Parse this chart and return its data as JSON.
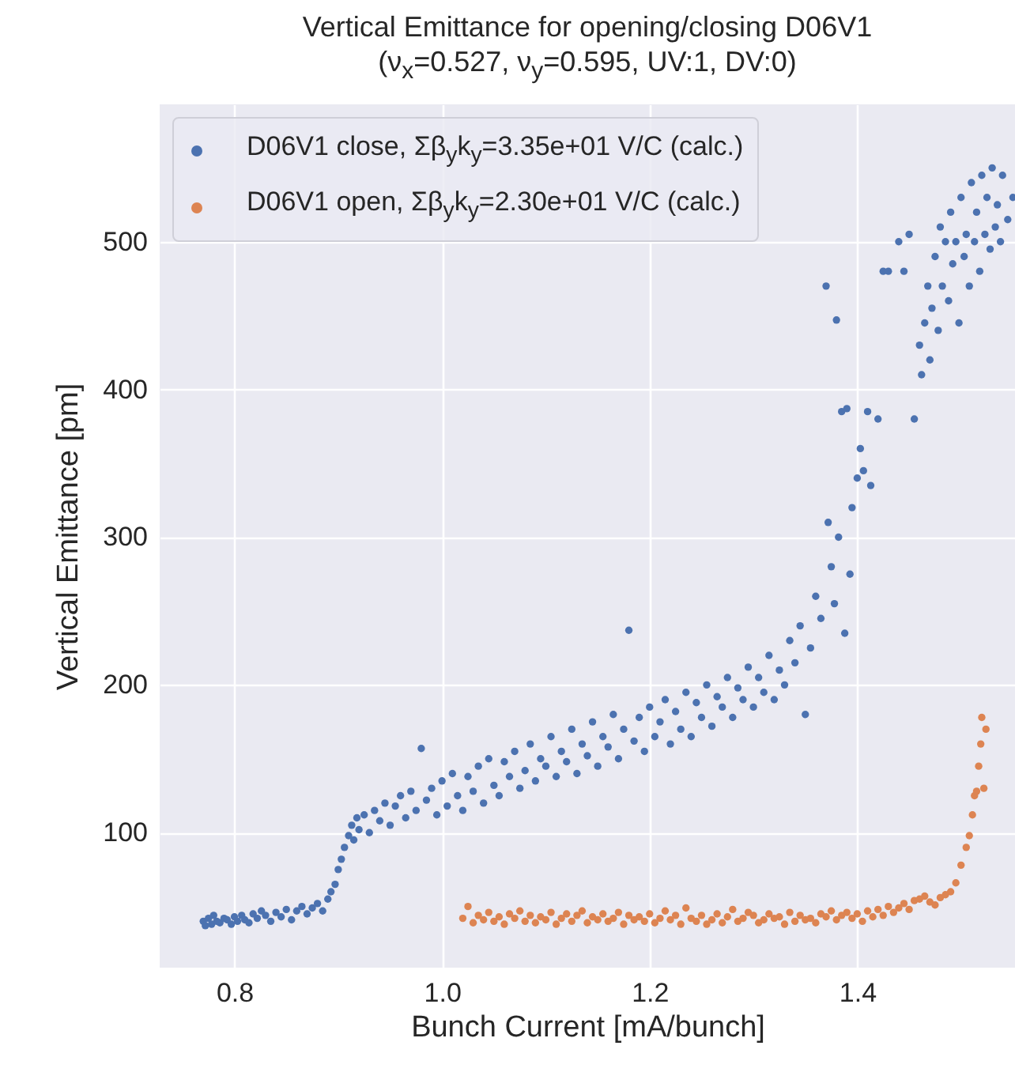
{
  "chart_data": {
    "type": "scatter",
    "title": "Vertical Emittance for opening/closing D06V1",
    "subtitle": "(ν$_{x}$=0.527, ν$_{y}$=0.595, UV:1, DV:0)",
    "xlabel": "Bunch Current [mA/bunch]",
    "ylabel": "Vertical Emittance [pm]",
    "xlim": [
      0.728,
      1.552
    ],
    "ylim": [
      8.6,
      593
    ],
    "xticks": [
      0.8,
      {
        "value": 1,
        "label": "1.0"
      },
      1.2,
      1.4
    ],
    "yticks": [
      100,
      200,
      300,
      400,
      500
    ],
    "grid": true,
    "legend": "top left",
    "marker": "circle",
    "series": [
      {
        "name": "D06V1 close, Σβ$_{y}$k$_{y}$=3.35e+01 V/C (calc.)",
        "color": "#4c72b0",
        "x": [
          0.77,
          0.772,
          0.775,
          0.778,
          0.78,
          0.783,
          0.786,
          0.79,
          0.793,
          0.797,
          0.8,
          0.803,
          0.807,
          0.81,
          0.814,
          0.818,
          0.822,
          0.826,
          0.83,
          0.835,
          0.84,
          0.845,
          0.85,
          0.855,
          0.86,
          0.865,
          0.87,
          0.875,
          0.88,
          0.885,
          0.89,
          0.893,
          0.897,
          0.9,
          0.903,
          0.906,
          0.91,
          0.913,
          0.915,
          0.918,
          0.92,
          0.925,
          0.93,
          0.935,
          0.94,
          0.945,
          0.95,
          0.955,
          0.96,
          0.965,
          0.97,
          0.975,
          0.98,
          0.985,
          0.99,
          0.995,
          1.0,
          1.005,
          1.01,
          1.015,
          1.02,
          1.025,
          1.03,
          1.035,
          1.04,
          1.045,
          1.05,
          1.055,
          1.06,
          1.065,
          1.07,
          1.075,
          1.08,
          1.085,
          1.09,
          1.095,
          1.1,
          1.105,
          1.11,
          1.115,
          1.12,
          1.125,
          1.13,
          1.135,
          1.14,
          1.145,
          1.15,
          1.155,
          1.16,
          1.165,
          1.17,
          1.175,
          1.18,
          1.185,
          1.19,
          1.195,
          1.2,
          1.205,
          1.21,
          1.215,
          1.22,
          1.225,
          1.23,
          1.235,
          1.24,
          1.245,
          1.25,
          1.255,
          1.26,
          1.265,
          1.27,
          1.275,
          1.28,
          1.285,
          1.29,
          1.295,
          1.3,
          1.305,
          1.31,
          1.315,
          1.32,
          1.325,
          1.33,
          1.335,
          1.34,
          1.345,
          1.35,
          1.355,
          1.36,
          1.365,
          1.37,
          1.372,
          1.375,
          1.378,
          1.38,
          1.382,
          1.385,
          1.388,
          1.39,
          1.393,
          1.395,
          1.4,
          1.403,
          1.406,
          1.41,
          1.413,
          1.42,
          1.425,
          1.43,
          1.44,
          1.445,
          1.45,
          1.455,
          1.46,
          1.462,
          1.465,
          1.468,
          1.47,
          1.472,
          1.475,
          1.478,
          1.48,
          1.482,
          1.485,
          1.488,
          1.49,
          1.492,
          1.495,
          1.498,
          1.5,
          1.503,
          1.505,
          1.508,
          1.51,
          1.513,
          1.515,
          1.518,
          1.52,
          1.523,
          1.525,
          1.528,
          1.53,
          1.533,
          1.535,
          1.538,
          1.54,
          1.545,
          1.55
        ],
        "values": [
          40,
          37,
          42,
          38,
          44,
          40,
          39,
          42,
          41,
          38,
          43,
          40,
          44,
          41,
          39,
          45,
          42,
          47,
          44,
          40,
          46,
          43,
          48,
          41,
          47,
          50,
          45,
          49,
          52,
          47,
          55,
          60,
          65,
          75,
          82,
          90,
          98,
          105,
          95,
          110,
          102,
          112,
          100,
          115,
          108,
          120,
          105,
          118,
          125,
          110,
          128,
          115,
          157,
          122,
          130,
          112,
          135,
          118,
          140,
          125,
          115,
          138,
          128,
          145,
          120,
          150,
          132,
          125,
          148,
          138,
          155,
          130,
          142,
          160,
          135,
          150,
          145,
          165,
          138,
          155,
          148,
          170,
          140,
          160,
          152,
          175,
          145,
          165,
          158,
          180,
          150,
          170,
          237,
          162,
          178,
          155,
          185,
          165,
          175,
          190,
          160,
          182,
          170,
          195,
          165,
          188,
          178,
          200,
          172,
          192,
          185,
          205,
          178,
          198,
          190,
          212,
          185,
          205,
          195,
          220,
          190,
          210,
          200,
          230,
          215,
          240,
          180,
          225,
          260,
          245,
          470,
          310,
          280,
          255,
          447,
          300,
          385,
          235,
          387,
          275,
          320,
          340,
          360,
          345,
          385,
          335,
          380,
          480,
          480,
          500,
          480,
          505,
          380,
          430,
          410,
          445,
          470,
          420,
          455,
          490,
          440,
          510,
          470,
          500,
          460,
          520,
          485,
          500,
          445,
          530,
          490,
          505,
          470,
          540,
          500,
          520,
          480,
          545,
          505,
          530,
          495,
          550,
          510,
          525,
          500,
          545,
          515,
          530
        ]
      },
      {
        "name": "D06V1 open, Σβ$_{y}$k$_{y}$=2.30e+01 V/C (calc.)",
        "color": "#dd8452",
        "x": [
          1.02,
          1.025,
          1.03,
          1.035,
          1.04,
          1.045,
          1.05,
          1.055,
          1.06,
          1.065,
          1.07,
          1.075,
          1.08,
          1.085,
          1.09,
          1.095,
          1.1,
          1.105,
          1.11,
          1.115,
          1.12,
          1.125,
          1.13,
          1.135,
          1.14,
          1.145,
          1.15,
          1.155,
          1.16,
          1.165,
          1.17,
          1.175,
          1.18,
          1.185,
          1.19,
          1.195,
          1.2,
          1.205,
          1.21,
          1.215,
          1.22,
          1.225,
          1.23,
          1.235,
          1.24,
          1.245,
          1.25,
          1.255,
          1.26,
          1.265,
          1.27,
          1.275,
          1.28,
          1.285,
          1.29,
          1.295,
          1.3,
          1.305,
          1.31,
          1.315,
          1.32,
          1.325,
          1.33,
          1.335,
          1.34,
          1.345,
          1.35,
          1.355,
          1.36,
          1.365,
          1.37,
          1.375,
          1.38,
          1.385,
          1.39,
          1.395,
          1.4,
          1.405,
          1.41,
          1.415,
          1.42,
          1.425,
          1.43,
          1.435,
          1.44,
          1.445,
          1.45,
          1.455,
          1.46,
          1.465,
          1.47,
          1.475,
          1.48,
          1.485,
          1.49,
          1.495,
          1.5,
          1.505,
          1.508,
          1.511,
          1.513,
          1.515,
          1.517,
          1.519,
          1.52,
          1.522,
          1.524
        ],
        "values": [
          42,
          50,
          39,
          44,
          41,
          46,
          40,
          43,
          38,
          45,
          42,
          47,
          40,
          44,
          39,
          43,
          41,
          46,
          38,
          42,
          45,
          40,
          44,
          47,
          39,
          43,
          41,
          45,
          40,
          42,
          46,
          38,
          44,
          41,
          43,
          40,
          45,
          39,
          42,
          47,
          41,
          44,
          38,
          49,
          42,
          40,
          44,
          38,
          41,
          45,
          39,
          43,
          48,
          40,
          42,
          46,
          44,
          39,
          41,
          45,
          42,
          43,
          38,
          46,
          40,
          44,
          41,
          42,
          39,
          45,
          43,
          47,
          41,
          44,
          46,
          42,
          45,
          40,
          47,
          43,
          48,
          44,
          50,
          46,
          49,
          52,
          48,
          54,
          55,
          57,
          53,
          51,
          56,
          58,
          60,
          66,
          78,
          90,
          98,
          112,
          125,
          128,
          145,
          160,
          178,
          130,
          170
        ]
      }
    ]
  }
}
